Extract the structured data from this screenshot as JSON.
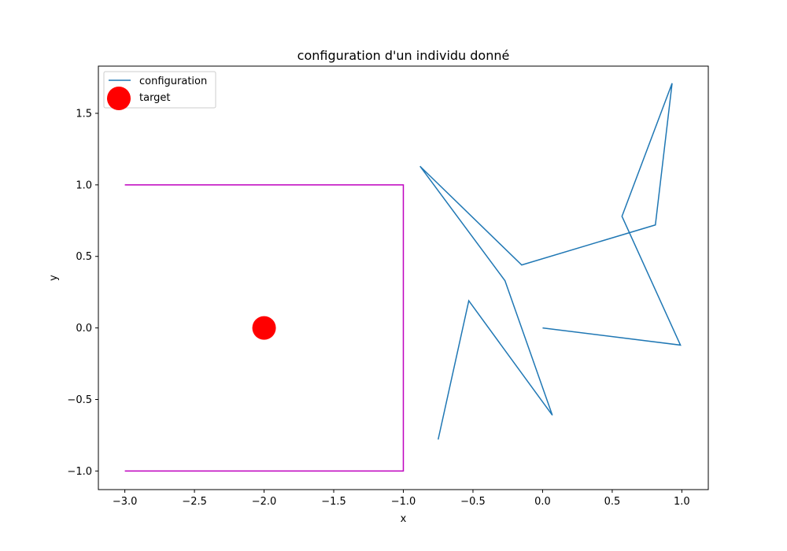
{
  "chart_data": {
    "type": "line",
    "title": "configuration d'un individu donné",
    "xlabel": "x",
    "ylabel": "y",
    "xlim": [
      -3.19,
      1.19
    ],
    "ylim": [
      -1.13,
      1.83
    ],
    "xticks": [
      -3.0,
      -2.5,
      -2.0,
      -1.5,
      -1.0,
      -0.5,
      0.0,
      0.5,
      1.0
    ],
    "xtick_labels": [
      "−3.0",
      "−2.5",
      "−2.0",
      "−1.5",
      "−1.0",
      "−0.5",
      "0.0",
      "0.5",
      "1.0"
    ],
    "yticks": [
      -1.0,
      -0.5,
      0.0,
      0.5,
      1.0,
      1.5
    ],
    "ytick_labels": [
      "−1.0",
      "−0.5",
      "0.0",
      "0.5",
      "1.0",
      "1.5"
    ],
    "grid": false,
    "legend_position": "top-left",
    "series": [
      {
        "name": "configuration",
        "color": "#1f77b4",
        "x": [
          0.0,
          0.99,
          0.57,
          0.93,
          0.81,
          -0.15,
          -0.88,
          -0.27,
          0.07,
          -0.53,
          -0.75
        ],
        "y": [
          0.0,
          -0.12,
          0.78,
          1.71,
          0.72,
          0.44,
          1.13,
          0.33,
          -0.61,
          0.19,
          -0.78
        ]
      },
      {
        "name": "target",
        "color": "#ff0000",
        "x": [
          -2.0
        ],
        "y": [
          0.0
        ]
      }
    ],
    "boundary": {
      "color": "#bf00bf",
      "x": [
        -3.0,
        -1.0,
        -1.0,
        -3.0
      ],
      "y": [
        1.0,
        1.0,
        -1.0,
        -1.0
      ]
    }
  }
}
